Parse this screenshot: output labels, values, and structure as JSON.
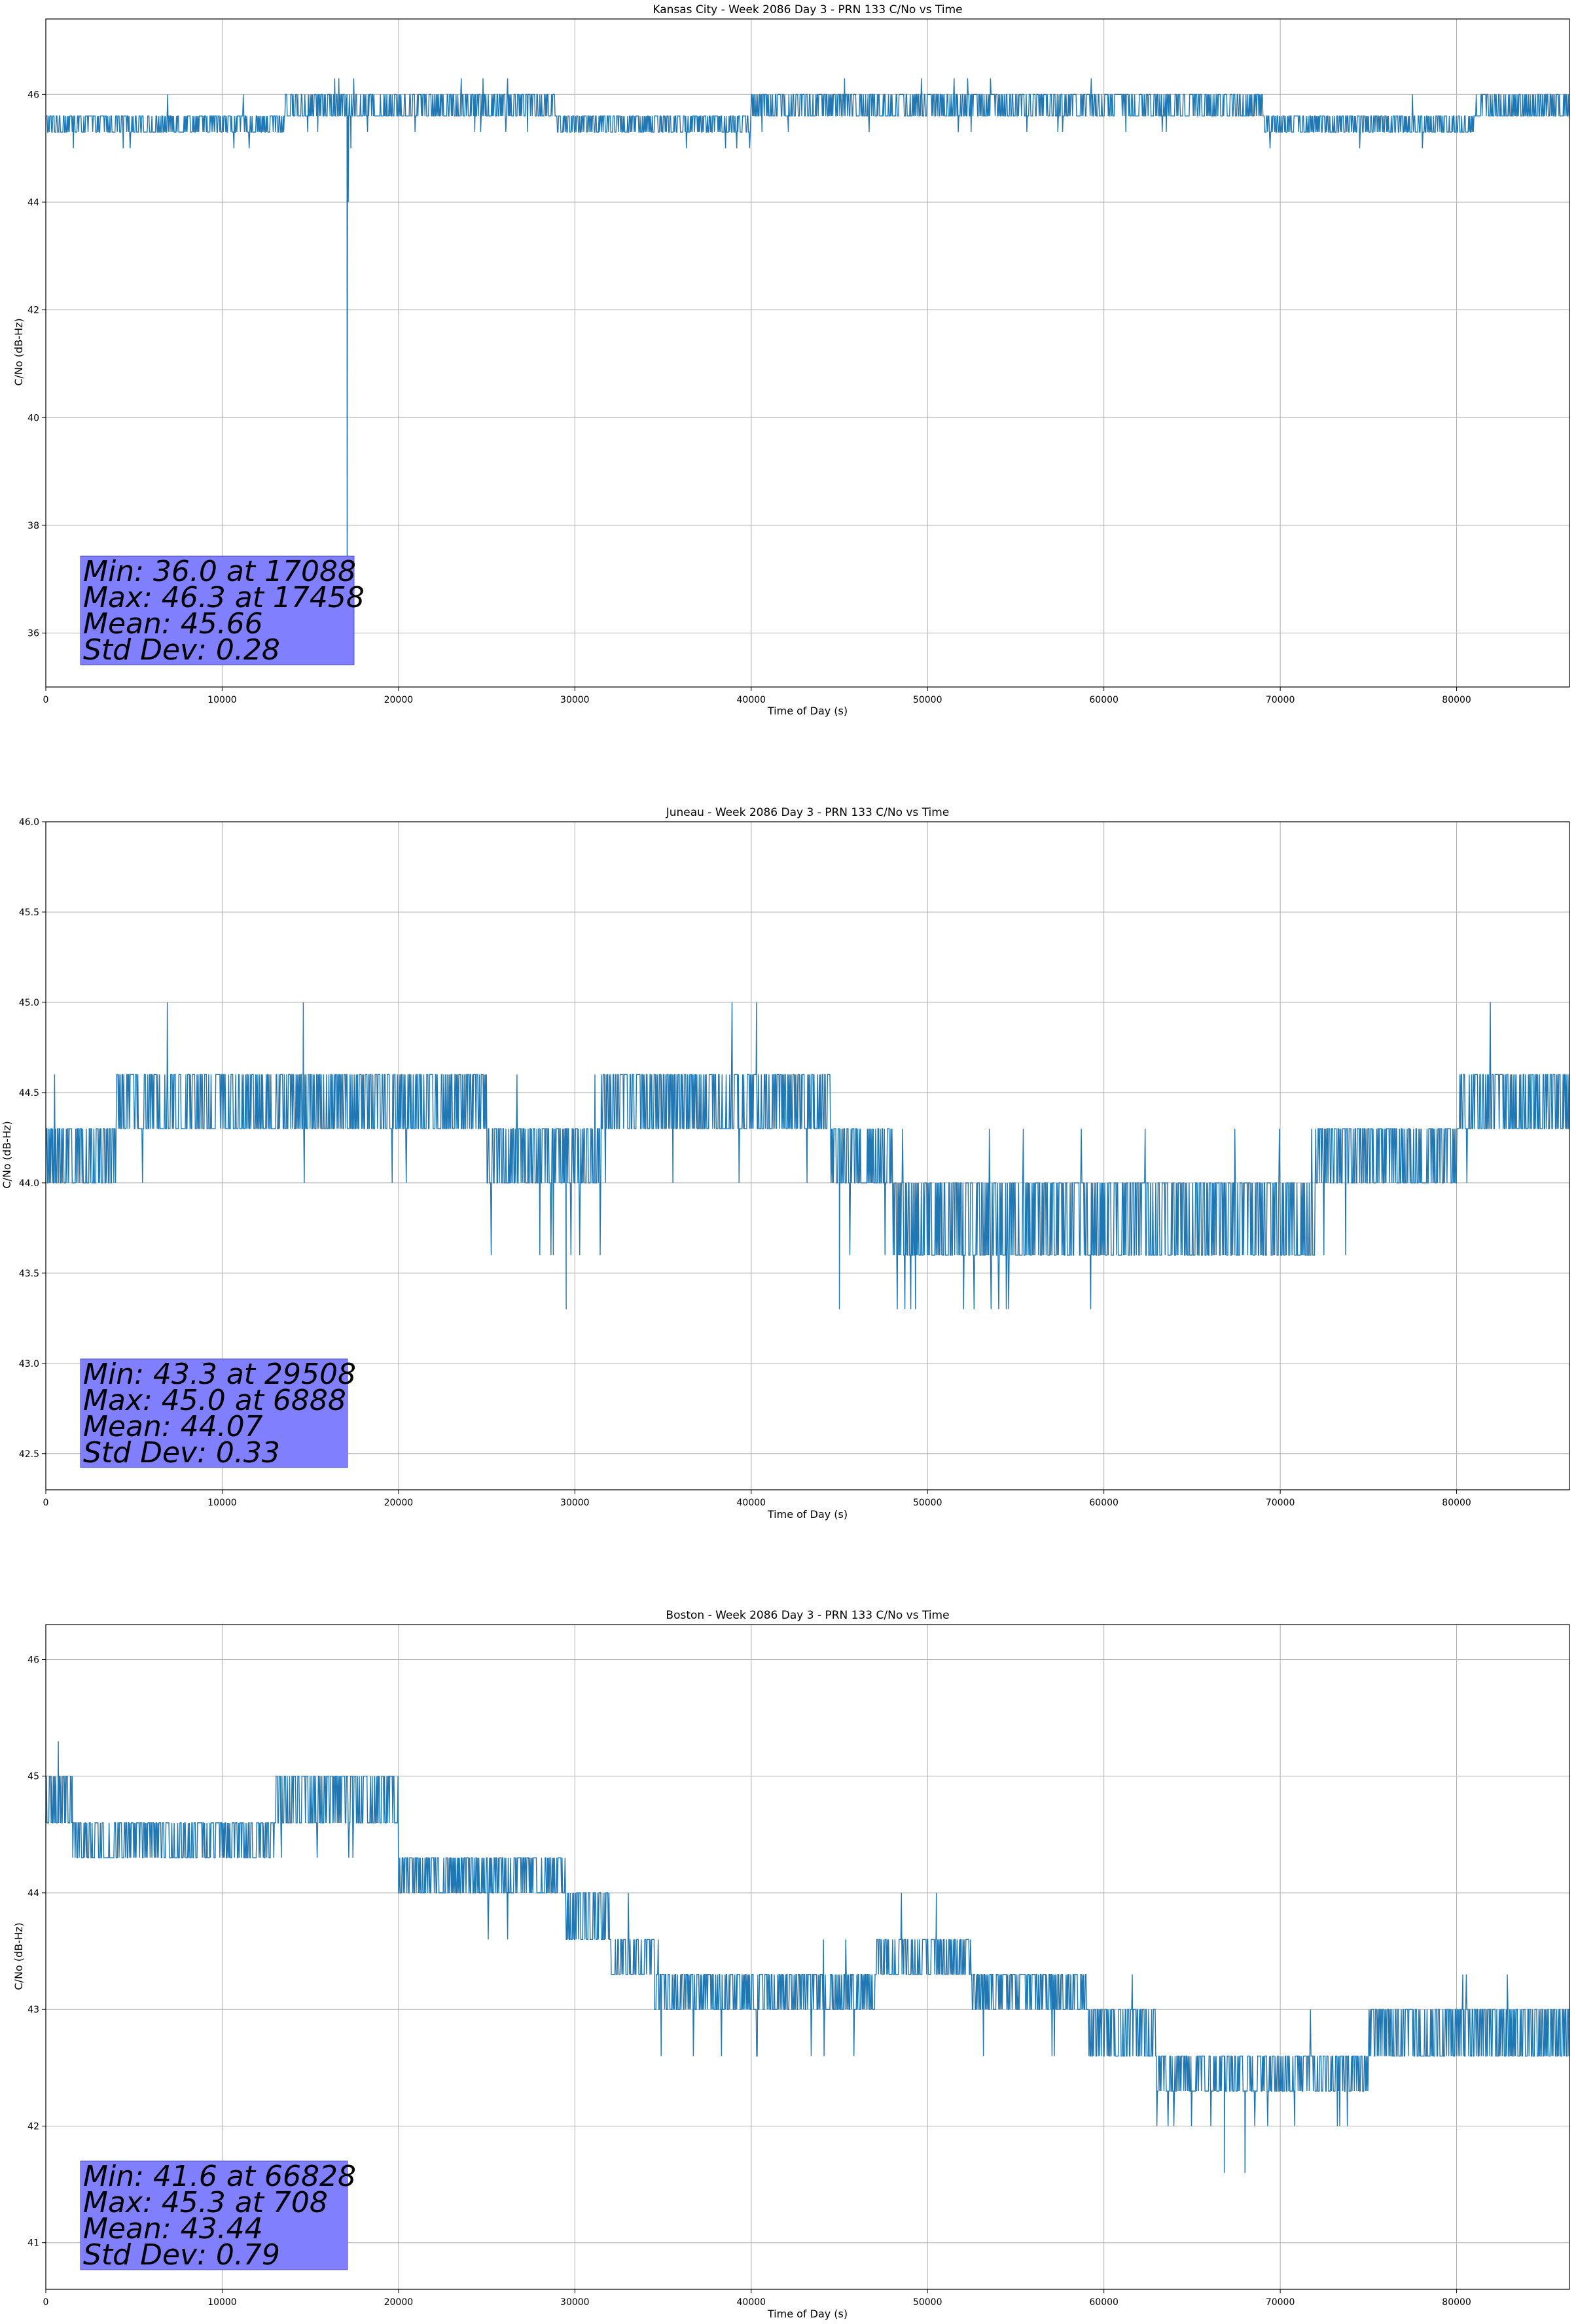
{
  "page": {
    "background": "#ffffff"
  },
  "colors": {
    "series": "#1f77b4",
    "stats_box": "#8080ff",
    "grid": "#b0b0b0"
  },
  "chart_data": [
    {
      "type": "line",
      "title": "Kansas City - Week 2086 Day 3 - PRN 133 C/No vs Time",
      "xlabel": "Time of Day (s)",
      "ylabel": "C/No (dB-Hz)",
      "xlim": [
        0,
        86400
      ],
      "ylim": [
        35.0,
        47.4
      ],
      "xticks": [
        0,
        10000,
        20000,
        30000,
        40000,
        50000,
        60000,
        70000,
        80000
      ],
      "yticks": [
        36,
        38,
        40,
        42,
        44,
        46
      ],
      "ytick_labels": [
        "36",
        "38",
        "40",
        "42",
        "44",
        "46"
      ],
      "grid": true,
      "segments": [
        {
          "x0": 0,
          "x1": 13500,
          "base": 45.3,
          "alt": 45.6,
          "lo": 45.0,
          "hi": 46.0,
          "p_lo": 0.004,
          "p_hi": 0.004
        },
        {
          "x0": 13500,
          "x1": 29000,
          "base": 45.6,
          "alt": 46.0,
          "lo": 45.3,
          "hi": 46.3,
          "p_lo": 0.012,
          "p_hi": 0.01
        },
        {
          "x0": 29000,
          "x1": 40000,
          "base": 45.3,
          "alt": 45.6,
          "lo": 45.0,
          "hi": 46.0,
          "p_lo": 0.004,
          "p_hi": 0.006
        },
        {
          "x0": 40000,
          "x1": 69000,
          "base": 45.6,
          "alt": 46.0,
          "lo": 45.3,
          "hi": 46.3,
          "p_lo": 0.008,
          "p_hi": 0.008
        },
        {
          "x0": 69000,
          "x1": 81000,
          "base": 45.3,
          "alt": 45.6,
          "lo": 45.0,
          "hi": 46.0,
          "p_lo": 0.012,
          "p_hi": 0.006
        },
        {
          "x0": 81000,
          "x1": 86400,
          "base": 45.6,
          "alt": 46.0,
          "lo": 45.3,
          "hi": 46.0,
          "p_lo": 0.01,
          "p_hi": 0.004
        }
      ],
      "spikes": [
        [
          17088,
          36.0
        ],
        [
          17150,
          44.0
        ],
        [
          17300,
          45.0
        ],
        [
          17458,
          46.3
        ]
      ],
      "stats": [
        "Min: 36.0 at 17088",
        "Max: 46.3 at 17458",
        "Mean: 45.66",
        "Std Dev: 0.28"
      ]
    },
    {
      "type": "line",
      "title": "Juneau - Week 2086 Day 3 - PRN 133 C/No vs Time",
      "xlabel": "Time of Day (s)",
      "ylabel": "C/No (dB-Hz)",
      "xlim": [
        0,
        86400
      ],
      "ylim": [
        42.3,
        46.0
      ],
      "xticks": [
        0,
        10000,
        20000,
        30000,
        40000,
        50000,
        60000,
        70000,
        80000
      ],
      "yticks": [
        42.5,
        43.0,
        43.5,
        44.0,
        44.5,
        45.0,
        45.5,
        46.0
      ],
      "ytick_labels": [
        "42.5",
        "43.0",
        "43.5",
        "44.0",
        "44.5",
        "45.0",
        "45.5",
        "46.0"
      ],
      "grid": true,
      "segments": [
        {
          "x0": 0,
          "x1": 4000,
          "base": 44.0,
          "alt": 44.3,
          "lo": 43.6,
          "hi": 44.6,
          "p_lo": 0.01,
          "p_hi": 0.004
        },
        {
          "x0": 4000,
          "x1": 25000,
          "base": 44.3,
          "alt": 44.6,
          "lo": 44.0,
          "hi": 45.0,
          "p_lo": 0.012,
          "p_hi": 0.003
        },
        {
          "x0": 25000,
          "x1": 31500,
          "base": 44.0,
          "alt": 44.3,
          "lo": 43.6,
          "hi": 44.6,
          "p_lo": 0.02,
          "p_hi": 0.006
        },
        {
          "x0": 31500,
          "x1": 44500,
          "base": 44.3,
          "alt": 44.6,
          "lo": 44.0,
          "hi": 45.0,
          "p_lo": 0.012,
          "p_hi": 0.003
        },
        {
          "x0": 44500,
          "x1": 48000,
          "base": 44.0,
          "alt": 44.3,
          "lo": 43.6,
          "hi": 44.3,
          "p_lo": 0.01,
          "p_hi": 0.004
        },
        {
          "x0": 48000,
          "x1": 56000,
          "base": 43.6,
          "alt": 44.0,
          "lo": 43.3,
          "hi": 44.3,
          "p_lo": 0.03,
          "p_hi": 0.004
        },
        {
          "x0": 56000,
          "x1": 72000,
          "base": 43.6,
          "alt": 44.0,
          "lo": 43.3,
          "hi": 44.3,
          "p_lo": 0.006,
          "p_hi": 0.008
        },
        {
          "x0": 72000,
          "x1": 80000,
          "base": 44.0,
          "alt": 44.3,
          "lo": 43.6,
          "hi": 44.6,
          "p_lo": 0.008,
          "p_hi": 0.006
        },
        {
          "x0": 80000,
          "x1": 86400,
          "base": 44.3,
          "alt": 44.6,
          "lo": 44.0,
          "hi": 45.0,
          "p_lo": 0.006,
          "p_hi": 0.008
        }
      ],
      "spikes": [
        [
          6888,
          45.0
        ],
        [
          14600,
          45.0
        ],
        [
          29508,
          43.3
        ],
        [
          40300,
          45.0
        ],
        [
          45000,
          43.3
        ]
      ],
      "stats": [
        "Min: 43.3 at 29508",
        "Max: 45.0 at 6888",
        "Mean: 44.07",
        "Std Dev: 0.33"
      ]
    },
    {
      "type": "line",
      "title": "Boston - Week 2086 Day 3 - PRN 133 C/No vs Time",
      "xlabel": "Time of Day (s)",
      "ylabel": "C/No (dB-Hz)",
      "xlim": [
        0,
        86400
      ],
      "ylim": [
        40.6,
        46.3
      ],
      "xticks": [
        0,
        10000,
        20000,
        30000,
        40000,
        50000,
        60000,
        70000,
        80000
      ],
      "yticks": [
        41,
        42,
        43,
        44,
        45,
        46
      ],
      "ytick_labels": [
        "41",
        "42",
        "43",
        "44",
        "45",
        "46"
      ],
      "grid": true,
      "segments": [
        {
          "x0": 0,
          "x1": 1500,
          "base": 44.6,
          "alt": 45.0,
          "lo": 44.3,
          "hi": 45.0,
          "p_lo": 0.004,
          "p_hi": 0.004
        },
        {
          "x0": 1500,
          "x1": 13000,
          "base": 44.3,
          "alt": 44.6,
          "lo": 44.0,
          "hi": 45.0,
          "p_lo": 0.006,
          "p_hi": 0.003
        },
        {
          "x0": 13000,
          "x1": 20000,
          "base": 44.6,
          "alt": 45.0,
          "lo": 44.3,
          "hi": 45.0,
          "p_lo": 0.01,
          "p_hi": 0.004
        },
        {
          "x0": 20000,
          "x1": 29500,
          "base": 44.0,
          "alt": 44.3,
          "lo": 43.6,
          "hi": 44.6,
          "p_lo": 0.006,
          "p_hi": 0.006
        },
        {
          "x0": 29500,
          "x1": 32000,
          "base": 43.6,
          "alt": 44.0,
          "lo": 43.6,
          "hi": 44.3,
          "p_lo": 0.01,
          "p_hi": 0.006
        },
        {
          "x0": 32000,
          "x1": 34500,
          "base": 43.3,
          "alt": 43.6,
          "lo": 43.3,
          "hi": 44.0,
          "p_lo": 0.006,
          "p_hi": 0.006
        },
        {
          "x0": 34500,
          "x1": 47000,
          "base": 43.0,
          "alt": 43.3,
          "lo": 42.6,
          "hi": 43.6,
          "p_lo": 0.025,
          "p_hi": 0.004
        },
        {
          "x0": 47000,
          "x1": 52500,
          "base": 43.3,
          "alt": 43.6,
          "lo": 43.0,
          "hi": 44.0,
          "p_lo": 0.006,
          "p_hi": 0.004
        },
        {
          "x0": 52500,
          "x1": 59000,
          "base": 43.0,
          "alt": 43.3,
          "lo": 42.6,
          "hi": 43.6,
          "p_lo": 0.012,
          "p_hi": 0.004
        },
        {
          "x0": 59000,
          "x1": 63000,
          "base": 42.6,
          "alt": 43.0,
          "lo": 42.3,
          "hi": 43.3,
          "p_lo": 0.008,
          "p_hi": 0.004
        },
        {
          "x0": 63000,
          "x1": 75000,
          "base": 42.3,
          "alt": 42.6,
          "lo": 42.0,
          "hi": 43.0,
          "p_lo": 0.03,
          "p_hi": 0.004
        },
        {
          "x0": 75000,
          "x1": 80000,
          "base": 42.6,
          "alt": 43.0,
          "lo": 42.3,
          "hi": 43.3,
          "p_lo": 0.006,
          "p_hi": 0.006
        },
        {
          "x0": 80000,
          "x1": 86400,
          "base": 42.6,
          "alt": 43.0,
          "lo": 42.3,
          "hi": 43.3,
          "p_lo": 0.004,
          "p_hi": 0.01
        }
      ],
      "spikes": [
        [
          708,
          45.3
        ],
        [
          50500,
          44.0
        ],
        [
          66828,
          41.6
        ],
        [
          68000,
          41.6
        ]
      ],
      "stats": [
        "Min: 41.6 at 66828",
        "Max: 45.3 at 708",
        "Mean: 43.44",
        "Std Dev: 0.79"
      ]
    }
  ]
}
